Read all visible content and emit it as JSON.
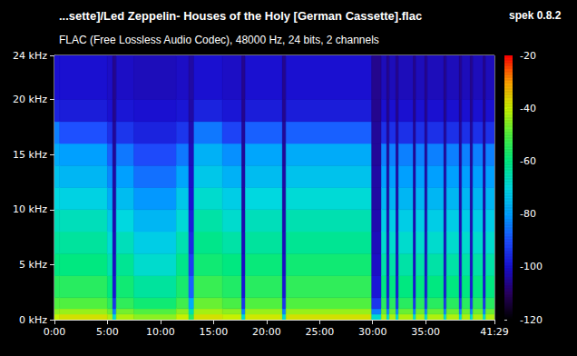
{
  "chart_data": {
    "type": "heatmap",
    "title": "...sette]/Led Zeppelin- Houses of the Holy [German Cassette].flac",
    "subtitle": "FLAC (Free Lossless Audio Codec), 48000 Hz, 24 bits, 2 channels",
    "annotations": [
      "spek 0.8.2"
    ],
    "grid": false,
    "xlim": [
      0,
      2489
    ],
    "xticks": [
      {
        "value": 0,
        "label": "0:00"
      },
      {
        "value": 300,
        "label": "5:00"
      },
      {
        "value": 600,
        "label": "10:00"
      },
      {
        "value": 900,
        "label": "15:00"
      },
      {
        "value": 1200,
        "label": "20:00"
      },
      {
        "value": 1500,
        "label": "25:00"
      },
      {
        "value": 1800,
        "label": "30:00"
      },
      {
        "value": 2100,
        "label": "35:00"
      },
      {
        "value": 2489,
        "label": "41:29"
      }
    ],
    "ylim": [
      0,
      24
    ],
    "yticks": [
      {
        "value": 0,
        "label": "0 kHz"
      },
      {
        "value": 5,
        "label": "5 kHz"
      },
      {
        "value": 10,
        "label": "10 kHz"
      },
      {
        "value": 15,
        "label": "15 kHz"
      },
      {
        "value": 20,
        "label": "20 kHz"
      },
      {
        "value": 24,
        "label": "24 kHz"
      }
    ],
    "time_bins": [
      0,
      30,
      300,
      330,
      350,
      450,
      690,
      760,
      790,
      950,
      1060,
      1080,
      1290,
      1310,
      1795,
      1850,
      1880,
      1895,
      1932,
      1947,
      2030,
      2045,
      2095,
      2110,
      2203,
      2218,
      2290,
      2305,
      2352,
      2367,
      2425,
      2440,
      2489
    ],
    "freq_bins": [
      0,
      0.5,
      1,
      2,
      4,
      6,
      8,
      10,
      12,
      14,
      16,
      18,
      20,
      24
    ],
    "cells": [
      [
        -40,
        -45,
        -50,
        -55,
        -60,
        -63,
        -66,
        -70,
        -74,
        -78,
        -84,
        -97,
        -100
      ],
      [
        -38,
        -44,
        -50,
        -55,
        -60,
        -63,
        -66,
        -71,
        -76,
        -80,
        -90,
        -98,
        -100
      ],
      [
        -42,
        -48,
        -55,
        -60,
        -65,
        -69,
        -73,
        -78,
        -83,
        -88,
        -95,
        -100,
        -101
      ],
      [
        -68,
        -84,
        -94,
        -99,
        -101,
        -102,
        -103,
        -104,
        -104,
        -105,
        -105,
        -106,
        -106
      ],
      [
        -42,
        -47,
        -54,
        -58,
        -62,
        -66,
        -70,
        -75,
        -80,
        -85,
        -94,
        -99,
        -101
      ],
      [
        -45,
        -50,
        -58,
        -63,
        -68,
        -72,
        -76,
        -81,
        -86,
        -91,
        -97,
        -100,
        -102
      ],
      [
        -40,
        -45,
        -52,
        -57,
        -61,
        -65,
        -69,
        -73,
        -79,
        -85,
        -94,
        -99,
        -101
      ],
      [
        -55,
        -65,
        -78,
        -88,
        -93,
        -96,
        -98,
        -100,
        -101,
        -102,
        -103,
        -104,
        -104
      ],
      [
        -38,
        -43,
        -48,
        -53,
        -58,
        -61,
        -64,
        -68,
        -73,
        -77,
        -85,
        -97,
        -100
      ],
      [
        -40,
        -45,
        -51,
        -56,
        -60,
        -64,
        -68,
        -72,
        -77,
        -82,
        -92,
        -99,
        -101
      ],
      [
        -68,
        -84,
        -94,
        -99,
        -101,
        -102,
        -103,
        -104,
        -104,
        -105,
        -105,
        -106,
        -106
      ],
      [
        -39,
        -44,
        -50,
        -55,
        -59,
        -63,
        -66,
        -70,
        -75,
        -79,
        -88,
        -98,
        -100
      ],
      [
        -68,
        -84,
        -94,
        -99,
        -101,
        -102,
        -103,
        -104,
        -104,
        -105,
        -105,
        -106,
        -106
      ],
      [
        -38,
        -44,
        -50,
        -54,
        -58,
        -62,
        -65,
        -69,
        -74,
        -78,
        -88,
        -98,
        -100
      ],
      [
        -68,
        -84,
        -94,
        -99,
        -101,
        -102,
        -103,
        -104,
        -104,
        -105,
        -105,
        -106,
        -106
      ],
      [
        -42,
        -48,
        -55,
        -60,
        -64,
        -68,
        -72,
        -76,
        -80,
        -84,
        -95,
        -100,
        -102
      ],
      [
        -68,
        -84,
        -94,
        -99,
        -101,
        -102,
        -103,
        -104,
        -104,
        -105,
        -105,
        -106,
        -106
      ],
      [
        -42,
        -48,
        -55,
        -60,
        -64,
        -68,
        -72,
        -76,
        -80,
        -84,
        -95,
        -100,
        -102
      ],
      [
        -68,
        -84,
        -94,
        -99,
        -101,
        -102,
        -103,
        -104,
        -104,
        -105,
        -105,
        -106,
        -106
      ],
      [
        -42,
        -48,
        -55,
        -60,
        -64,
        -68,
        -72,
        -76,
        -80,
        -84,
        -95,
        -100,
        -102
      ],
      [
        -68,
        -84,
        -94,
        -99,
        -101,
        -102,
        -103,
        -104,
        -104,
        -105,
        -105,
        -106,
        -106
      ],
      [
        -42,
        -48,
        -55,
        -60,
        -64,
        -68,
        -72,
        -76,
        -80,
        -84,
        -95,
        -100,
        -102
      ],
      [
        -68,
        -84,
        -94,
        -99,
        -101,
        -102,
        -103,
        -104,
        -104,
        -105,
        -105,
        -106,
        -106
      ],
      [
        -42,
        -48,
        -55,
        -60,
        -64,
        -68,
        -72,
        -76,
        -80,
        -84,
        -95,
        -100,
        -102
      ],
      [
        -68,
        -84,
        -94,
        -99,
        -101,
        -102,
        -103,
        -104,
        -104,
        -105,
        -105,
        -106,
        -106
      ],
      [
        -42,
        -48,
        -55,
        -60,
        -64,
        -68,
        -72,
        -76,
        -80,
        -84,
        -95,
        -100,
        -102
      ],
      [
        -68,
        -84,
        -94,
        -99,
        -101,
        -102,
        -103,
        -104,
        -104,
        -105,
        -105,
        -106,
        -106
      ],
      [
        -42,
        -48,
        -55,
        -60,
        -64,
        -68,
        -72,
        -76,
        -80,
        -84,
        -95,
        -100,
        -102
      ],
      [
        -68,
        -84,
        -94,
        -99,
        -101,
        -102,
        -103,
        -104,
        -104,
        -105,
        -105,
        -106,
        -106
      ],
      [
        -42,
        -48,
        -55,
        -60,
        -64,
        -68,
        -72,
        -76,
        -80,
        -84,
        -95,
        -100,
        -102
      ],
      [
        -68,
        -84,
        -94,
        -99,
        -101,
        -102,
        -103,
        -104,
        -104,
        -105,
        -105,
        -106,
        -106
      ],
      [
        -42,
        -48,
        -55,
        -60,
        -64,
        -68,
        -72,
        -76,
        -80,
        -84,
        -95,
        -100,
        -102
      ]
    ],
    "colorbar": {
      "range": [
        -120,
        -20
      ],
      "ticks": [
        -120,
        -100,
        -80,
        -60,
        -40,
        -20
      ]
    }
  }
}
